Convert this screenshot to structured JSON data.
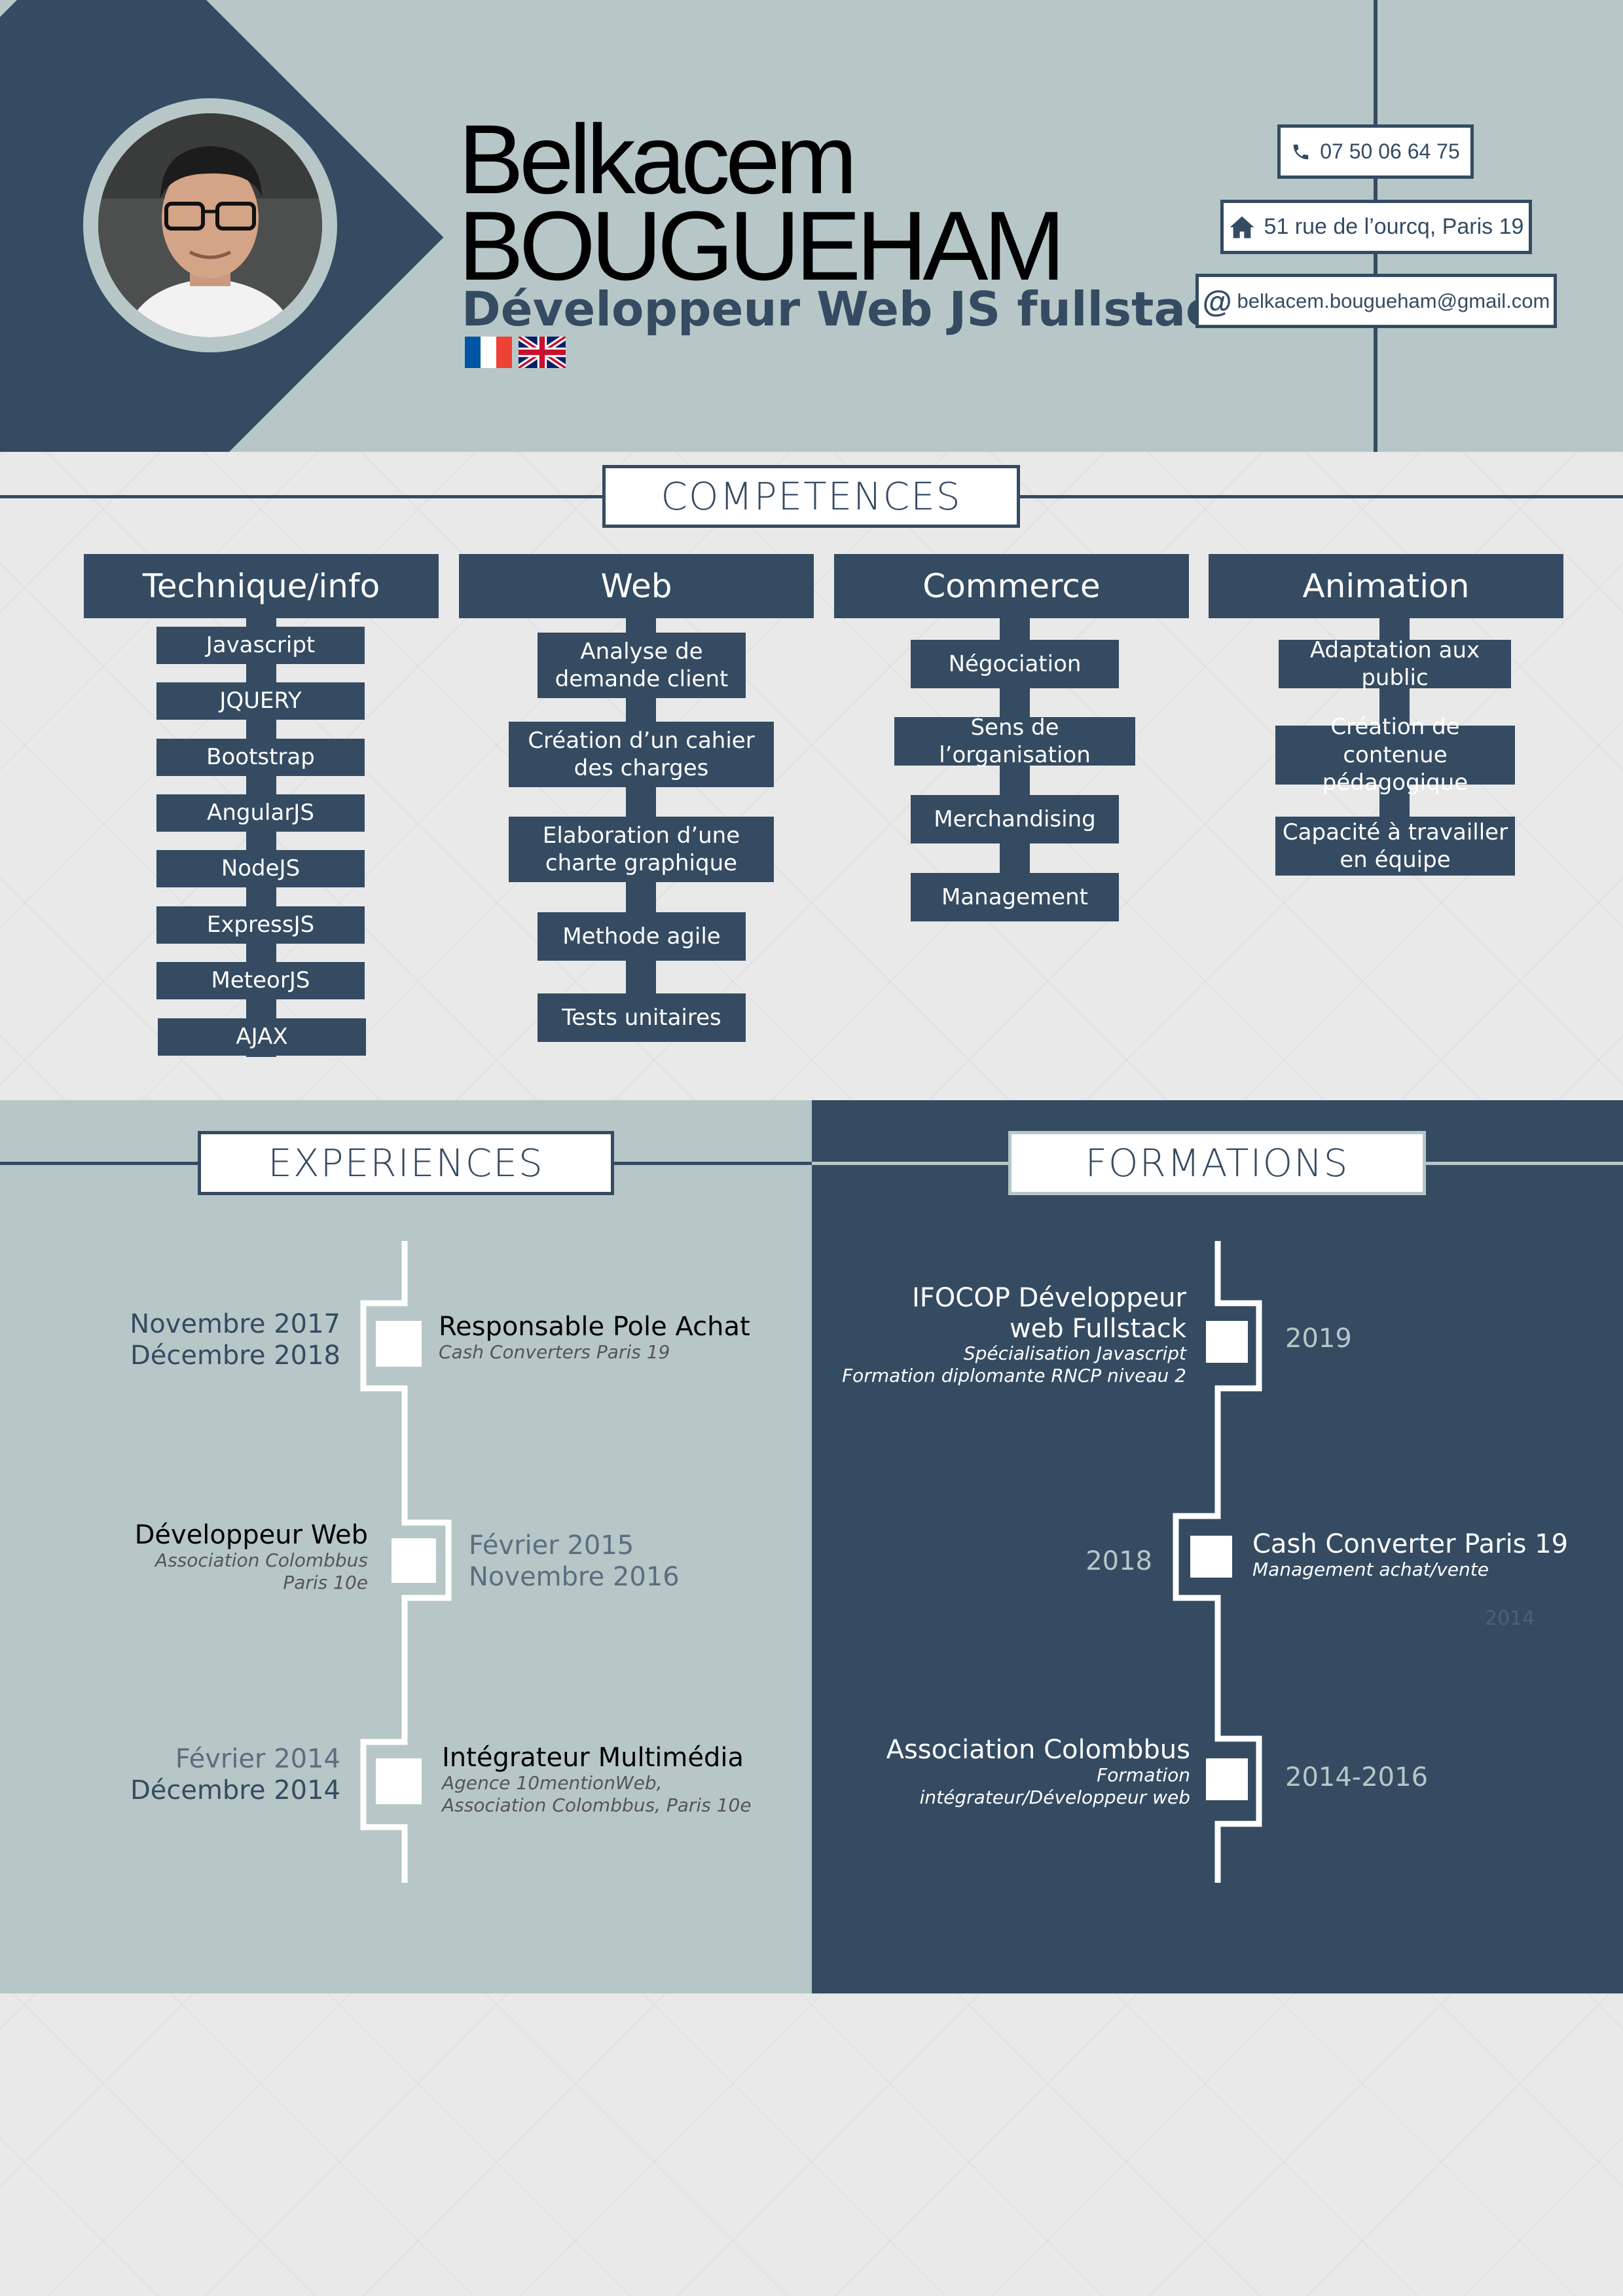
{
  "header": {
    "first_name": "Belkacem",
    "last_name": "BOUGUEHAM",
    "job_title": "Développeur Web JS fullstack",
    "flags": [
      "flag-fr-icon",
      "flag-uk-icon"
    ],
    "contacts": {
      "phone": "07 50 06 64 75",
      "address": "51 rue de l’ourcq, Paris 19",
      "email": "belkacem.bougueham@gmail.com"
    }
  },
  "colors": {
    "navy": "#344b62",
    "sage": "#b7c7c7",
    "background": "#e9e9e9",
    "white": "#ffffff"
  },
  "competences": {
    "title": "COMPETENCES",
    "columns": [
      {
        "title": "Technique/info",
        "items": [
          "Javascript",
          "JQUERY",
          "Bootstrap",
          "AngularJS",
          "NodeJS",
          "ExpressJS",
          "MeteorJS",
          "AJAX"
        ]
      },
      {
        "title": "Web",
        "items": [
          "Analyse de demande client",
          "Création d’un cahier des charges",
          "Elaboration d’une charte graphique",
          "Methode agile",
          "Tests unitaires"
        ]
      },
      {
        "title": "Commerce",
        "items": [
          "Négociation",
          "Sens de l’organisation",
          "Merchandising",
          "Management"
        ]
      },
      {
        "title": "Animation",
        "items": [
          "Adaptation aux public",
          "Création de contenue pédagogique",
          "Capacité à travailler en équipe"
        ]
      }
    ]
  },
  "experiences": {
    "title": "EXPERIENCES",
    "items": [
      {
        "date_1": "Novembre 2017",
        "date_2": "Décembre 2018",
        "role": "Responsable Pole Achat",
        "sub_1": "Cash Converters Paris 19"
      },
      {
        "date_1": "Février 2015",
        "date_2": "Novembre 2016",
        "role": "Développeur Web",
        "sub_1": "Association Colombbus",
        "sub_2": "Paris 10e"
      },
      {
        "date_1": "Février 2014",
        "date_2": "Décembre 2014",
        "role": "Intégrateur Multimédia",
        "sub_1": "Agence 10mentionWeb,",
        "sub_2": "Association Colombbus, Paris 10e"
      }
    ]
  },
  "formations": {
    "title": "FORMATIONS",
    "items": [
      {
        "year": "2019",
        "title_1": "IFOCOP Développeur",
        "title_2": "web Fullstack",
        "sub_1": "Spécialisation Javascript",
        "sub_2": "Formation diplomante RNCP niveau 2"
      },
      {
        "year": "2018",
        "title_1": "Cash Converter Paris 19",
        "sub_1": "Management achat/vente",
        "ghost": "2014"
      },
      {
        "year": "2014-2016",
        "title_1": "Association Colombbus",
        "sub_1": "Formation",
        "sub_2": "intégrateur/Développeur web"
      }
    ]
  }
}
